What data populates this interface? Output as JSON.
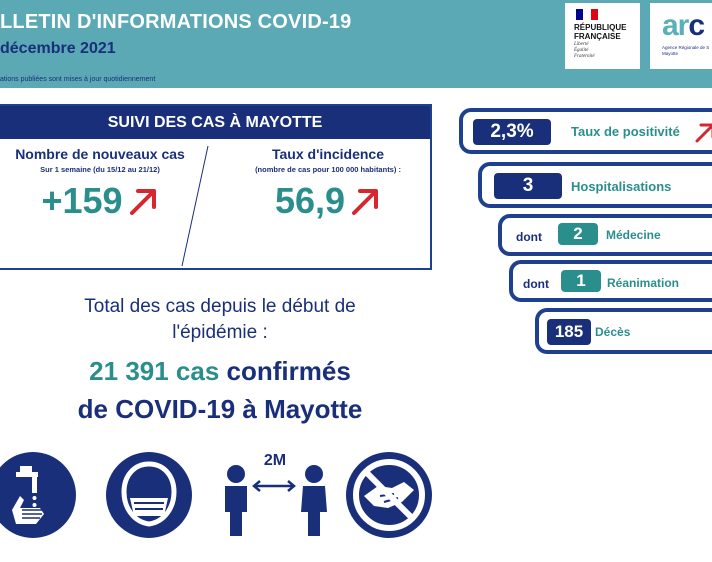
{
  "header": {
    "title": "LLETIN D'INFORMATIONS COVID-19",
    "date": "décembre 2021",
    "note": "ations publiées sont mises à jour quotidiennement",
    "logo_rf": {
      "name_line1": "RÉPUBLIQUE",
      "name_line2": "FRANÇAISE",
      "motto": [
        "Liberté",
        "Égalité",
        "Fraternité"
      ],
      "flag_colors": [
        "#000091",
        "#ffffff",
        "#e1000f"
      ]
    },
    "logo_ars": {
      "word_light": "ar",
      "sub_line1": "Agence Régionale de S",
      "sub_line2": "Mayotte"
    }
  },
  "cases": {
    "banner": "SUIVI DES CAS À MAYOTTE",
    "new_cases": {
      "title": "Nombre de nouveaux cas",
      "subtitle": "Sur 1 semaine (du 15/12 au 21/12)",
      "value": "+159",
      "trend": "up"
    },
    "incidence": {
      "title": "Taux d'incidence",
      "subtitle": "(nombre de cas pour 100 000 habitants) :",
      "value": "56,9",
      "trend": "up"
    }
  },
  "total": {
    "line1": "Total des cas depuis le début de",
    "line2": "l'épidémie :",
    "count": "21 391 cas",
    "confirmed": "confirmés",
    "line4": "de COVID-19 à Mayotte"
  },
  "icons": [
    "hand-washing-icon",
    "face-mask-icon",
    "social-distancing-icon",
    "no-handshake-icon"
  ],
  "distance_label": "2M",
  "stats": {
    "positivity": {
      "value": "2,3%",
      "label": "Taux de positivité",
      "trend": "up"
    },
    "hospitalisations": {
      "value": "3",
      "label": "Hospitalisations"
    },
    "medecine": {
      "prefix": "dont",
      "value": "2",
      "label": "Médecine"
    },
    "reanimation": {
      "prefix": "dont",
      "value": "1",
      "label": "Réanimation"
    },
    "deces": {
      "value": "185",
      "label": "Décès"
    }
  },
  "colors": {
    "navy": "#1a2f7a",
    "teal": "#2a8f8c",
    "header_bg": "#5aa9b4",
    "arrow_red": "#d8262e"
  }
}
